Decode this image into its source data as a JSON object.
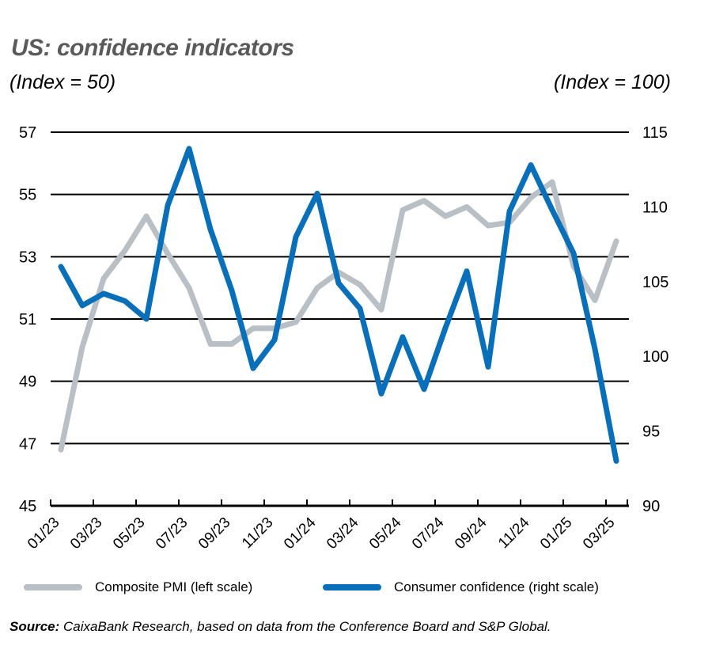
{
  "header": {
    "title": "US: confidence indicators",
    "left_unit": "(Index = 50)",
    "right_unit": "(Index = 100)"
  },
  "legend": {
    "items": [
      {
        "label": "Composite PMI (left scale)",
        "color": "#b8c0c6"
      },
      {
        "label": "Consumer confidence (right scale)",
        "color": "#0a6fb9"
      }
    ]
  },
  "source": {
    "label": "Source:",
    "text": " CaixaBank Research, based on data from the Conference Board and S&P Global."
  },
  "chart_data": {
    "type": "line",
    "title": "US: confidence indicators",
    "x": [
      "01/23",
      "02/23",
      "03/23",
      "04/23",
      "05/23",
      "06/23",
      "07/23",
      "08/23",
      "09/23",
      "10/23",
      "11/23",
      "12/23",
      "01/24",
      "02/24",
      "03/24",
      "04/24",
      "05/24",
      "06/24",
      "07/24",
      "08/24",
      "09/24",
      "10/24",
      "11/24",
      "12/24",
      "01/25",
      "02/25",
      "03/25"
    ],
    "x_tick_labels": [
      "01/23",
      "03/23",
      "05/23",
      "07/23",
      "09/23",
      "11/23",
      "01/24",
      "03/24",
      "05/24",
      "07/24",
      "09/24",
      "11/24",
      "01/25",
      "03/25"
    ],
    "series": [
      {
        "name": "Composite PMI (left scale)",
        "axis": "left",
        "color": "#b8c0c6",
        "values": [
          46.8,
          50.1,
          52.3,
          53.2,
          54.3,
          53.1,
          52.0,
          50.2,
          50.2,
          50.7,
          50.7,
          50.9,
          52.0,
          52.5,
          52.1,
          51.3,
          54.5,
          54.8,
          54.3,
          54.6,
          54.0,
          54.1,
          54.9,
          55.4,
          52.7,
          51.6,
          53.5
        ]
      },
      {
        "name": "Consumer confidence (right scale)",
        "axis": "right",
        "color": "#0a6fb9",
        "values": [
          106.0,
          103.4,
          104.2,
          103.7,
          102.5,
          110.1,
          113.9,
          108.5,
          104.4,
          99.2,
          101.1,
          108.0,
          110.9,
          104.9,
          103.2,
          97.5,
          101.3,
          97.8,
          101.9,
          105.7,
          99.3,
          109.7,
          112.8,
          109.8,
          106.9,
          100.5,
          93.0
        ]
      }
    ],
    "ylabel_left": "(Index = 50)",
    "ylabel_right": "(Index = 100)",
    "ylim_left": [
      45,
      57
    ],
    "yticks_left": [
      45,
      47,
      49,
      51,
      53,
      55,
      57
    ],
    "ylim_right": [
      90,
      115
    ],
    "yticks_right": [
      90,
      95,
      100,
      105,
      110,
      115
    ],
    "grid": true,
    "legend_position": "bottom"
  }
}
